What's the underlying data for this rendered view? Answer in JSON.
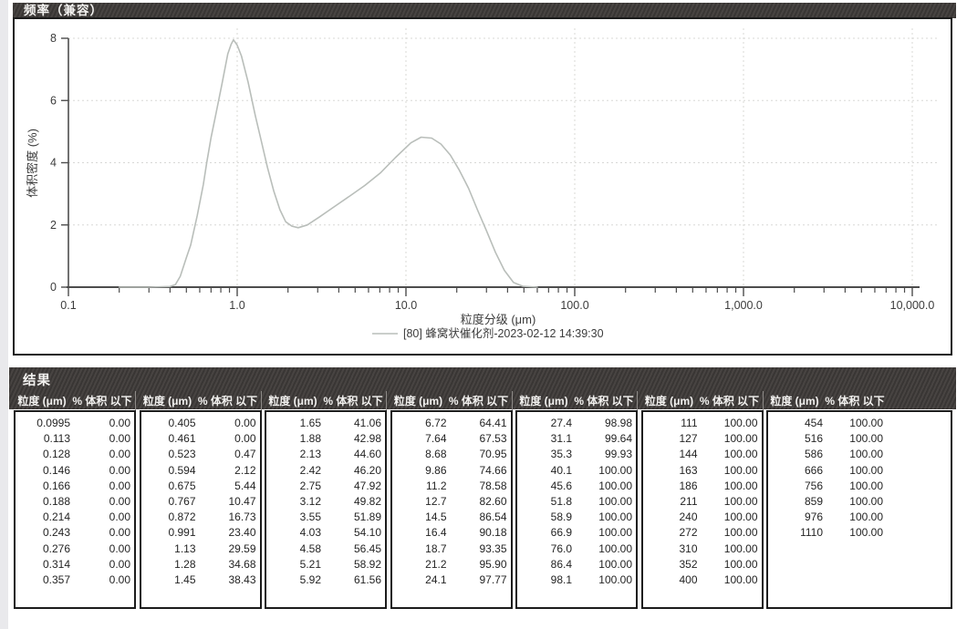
{
  "chart": {
    "title": "频率（兼容）",
    "ylabel": "体积密度 (%)",
    "xlabel": "粒度分级 (μm)",
    "legend": "[80] 蜂窝状催化剂-2023-02-12 14:39:30",
    "series_color": "#b9beba",
    "grid_color": "#d8d8d6"
  },
  "chart_data": {
    "type": "line",
    "title": "频率（兼容）",
    "xlabel": "粒度分级 (μm)",
    "ylabel": "体积密度 (%)",
    "x_scale": "log",
    "xlim": [
      0.1,
      10000
    ],
    "ylim": [
      0,
      8
    ],
    "grid": true,
    "legend_position": "bottom",
    "y_ticks": [
      0,
      2,
      4,
      6,
      8
    ],
    "x_major_ticks": [
      0.1,
      1,
      10,
      100,
      1000,
      10000
    ],
    "x_major_tick_labels": [
      "0.1",
      "1.0",
      "10.0",
      "100.0",
      "1,000.0",
      "10,000.0"
    ],
    "series": [
      {
        "name": "[80] 蜂窝状催化剂-2023-02-12 14:39:30",
        "color": "#b9beba",
        "points": [
          [
            0.2,
            0.0
          ],
          [
            0.3,
            0.0
          ],
          [
            0.4,
            0.02
          ],
          [
            0.43,
            0.08
          ],
          [
            0.46,
            0.35
          ],
          [
            0.5,
            0.95
          ],
          [
            0.53,
            1.35
          ],
          [
            0.58,
            2.3
          ],
          [
            0.63,
            3.3
          ],
          [
            0.66,
            4.0
          ],
          [
            0.7,
            4.8
          ],
          [
            0.75,
            5.6
          ],
          [
            0.81,
            6.5
          ],
          [
            0.88,
            7.5
          ],
          [
            0.92,
            7.8
          ],
          [
            0.95,
            7.95
          ],
          [
            1.0,
            7.78
          ],
          [
            1.06,
            7.43
          ],
          [
            1.16,
            6.6
          ],
          [
            1.28,
            5.52
          ],
          [
            1.39,
            4.69
          ],
          [
            1.51,
            3.86
          ],
          [
            1.65,
            3.08
          ],
          [
            1.79,
            2.49
          ],
          [
            1.94,
            2.1
          ],
          [
            2.11,
            1.96
          ],
          [
            2.3,
            1.91
          ],
          [
            2.6,
            2.0
          ],
          [
            3.06,
            2.25
          ],
          [
            3.77,
            2.59
          ],
          [
            4.65,
            2.93
          ],
          [
            5.71,
            3.27
          ],
          [
            7.05,
            3.67
          ],
          [
            8.65,
            4.16
          ],
          [
            10.7,
            4.64
          ],
          [
            12.3,
            4.82
          ],
          [
            14.2,
            4.79
          ],
          [
            16.1,
            4.6
          ],
          [
            18.3,
            4.25
          ],
          [
            20.7,
            3.76
          ],
          [
            23.5,
            3.18
          ],
          [
            26.5,
            2.49
          ],
          [
            30.0,
            1.81
          ],
          [
            33.9,
            1.12
          ],
          [
            38.3,
            0.54
          ],
          [
            43.4,
            0.15
          ],
          [
            49.2,
            0.03
          ],
          [
            60.0,
            0.0
          ]
        ]
      }
    ]
  },
  "results": {
    "title": "结果",
    "col_header_size": "粒度 (μm)",
    "col_header_pct": "% 体积 以下",
    "columns": [
      {
        "rows": [
          [
            "0.0995",
            "0.00"
          ],
          [
            "0.113",
            "0.00"
          ],
          [
            "0.128",
            "0.00"
          ],
          [
            "0.146",
            "0.00"
          ],
          [
            "0.166",
            "0.00"
          ],
          [
            "0.188",
            "0.00"
          ],
          [
            "0.214",
            "0.00"
          ],
          [
            "0.243",
            "0.00"
          ],
          [
            "0.276",
            "0.00"
          ],
          [
            "0.314",
            "0.00"
          ],
          [
            "0.357",
            "0.00"
          ]
        ]
      },
      {
        "rows": [
          [
            "0.405",
            "0.00"
          ],
          [
            "0.461",
            "0.00"
          ],
          [
            "0.523",
            "0.47"
          ],
          [
            "0.594",
            "2.12"
          ],
          [
            "0.675",
            "5.44"
          ],
          [
            "0.767",
            "10.47"
          ],
          [
            "0.872",
            "16.73"
          ],
          [
            "0.991",
            "23.40"
          ],
          [
            "1.13",
            "29.59"
          ],
          [
            "1.28",
            "34.68"
          ],
          [
            "1.45",
            "38.43"
          ]
        ]
      },
      {
        "rows": [
          [
            "1.65",
            "41.06"
          ],
          [
            "1.88",
            "42.98"
          ],
          [
            "2.13",
            "44.60"
          ],
          [
            "2.42",
            "46.20"
          ],
          [
            "2.75",
            "47.92"
          ],
          [
            "3.12",
            "49.82"
          ],
          [
            "3.55",
            "51.89"
          ],
          [
            "4.03",
            "54.10"
          ],
          [
            "4.58",
            "56.45"
          ],
          [
            "5.21",
            "58.92"
          ],
          [
            "5.92",
            "61.56"
          ]
        ]
      },
      {
        "rows": [
          [
            "6.72",
            "64.41"
          ],
          [
            "7.64",
            "67.53"
          ],
          [
            "8.68",
            "70.95"
          ],
          [
            "9.86",
            "74.66"
          ],
          [
            "11.2",
            "78.58"
          ],
          [
            "12.7",
            "82.60"
          ],
          [
            "14.5",
            "86.54"
          ],
          [
            "16.4",
            "90.18"
          ],
          [
            "18.7",
            "93.35"
          ],
          [
            "21.2",
            "95.90"
          ],
          [
            "24.1",
            "97.77"
          ]
        ]
      },
      {
        "rows": [
          [
            "27.4",
            "98.98"
          ],
          [
            "31.1",
            "99.64"
          ],
          [
            "35.3",
            "99.93"
          ],
          [
            "40.1",
            "100.00"
          ],
          [
            "45.6",
            "100.00"
          ],
          [
            "51.8",
            "100.00"
          ],
          [
            "58.9",
            "100.00"
          ],
          [
            "66.9",
            "100.00"
          ],
          [
            "76.0",
            "100.00"
          ],
          [
            "86.4",
            "100.00"
          ],
          [
            "98.1",
            "100.00"
          ]
        ]
      },
      {
        "rows": [
          [
            "111",
            "100.00"
          ],
          [
            "127",
            "100.00"
          ],
          [
            "144",
            "100.00"
          ],
          [
            "163",
            "100.00"
          ],
          [
            "186",
            "100.00"
          ],
          [
            "211",
            "100.00"
          ],
          [
            "240",
            "100.00"
          ],
          [
            "272",
            "100.00"
          ],
          [
            "310",
            "100.00"
          ],
          [
            "352",
            "100.00"
          ],
          [
            "400",
            "100.00"
          ]
        ]
      },
      {
        "rows": [
          [
            "454",
            "100.00"
          ],
          [
            "516",
            "100.00"
          ],
          [
            "586",
            "100.00"
          ],
          [
            "666",
            "100.00"
          ],
          [
            "756",
            "100.00"
          ],
          [
            "859",
            "100.00"
          ],
          [
            "976",
            "100.00"
          ],
          [
            "1110",
            "100.00"
          ]
        ]
      }
    ]
  }
}
